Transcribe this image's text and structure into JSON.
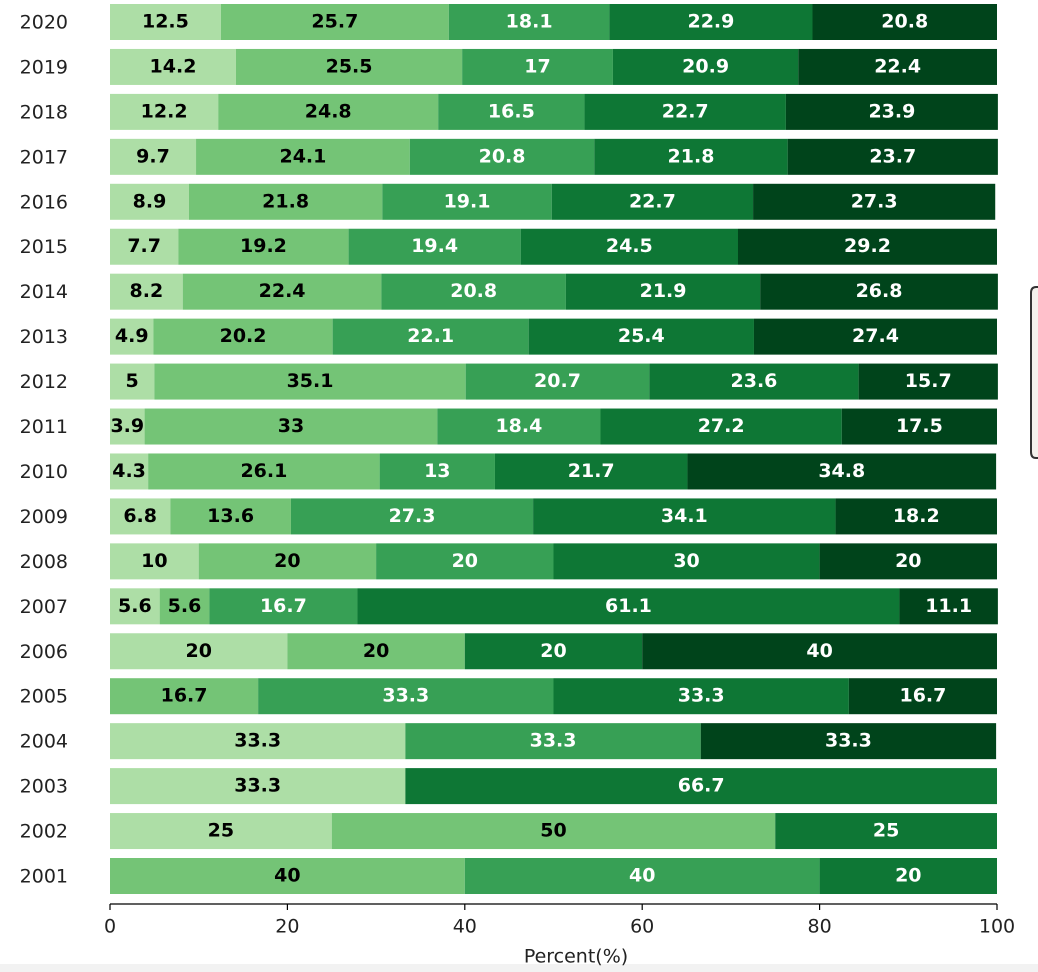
{
  "chart_data": {
    "type": "bar",
    "orientation": "horizontal",
    "stacked": true,
    "xlabel": "Percent(%)",
    "categories": [
      "2020",
      "2019",
      "2018",
      "2017",
      "2016",
      "2015",
      "2014",
      "2013",
      "2012",
      "2011",
      "2010",
      "2009",
      "2008",
      "2007",
      "2006",
      "2005",
      "2004",
      "2003",
      "2002",
      "2001"
    ],
    "series": [
      {
        "color": "#addea6",
        "values": [
          12.5,
          14.2,
          12.2,
          9.7,
          8.9,
          7.7,
          8.2,
          4.9,
          5,
          3.9,
          4.3,
          6.8,
          10,
          5.6,
          20,
          null,
          33.3,
          33.3,
          25,
          null
        ]
      },
      {
        "color": "#74c476",
        "values": [
          25.7,
          25.5,
          24.8,
          24.1,
          21.8,
          19.2,
          22.4,
          20.2,
          35.1,
          33,
          26.1,
          13.6,
          20,
          5.6,
          20,
          16.7,
          null,
          null,
          50,
          40
        ]
      },
      {
        "color": "#37a055",
        "values": [
          18.1,
          17,
          16.5,
          20.8,
          19.1,
          19.4,
          20.8,
          22.1,
          20.7,
          18.4,
          13,
          27.3,
          20,
          16.7,
          null,
          33.3,
          33.3,
          null,
          null,
          40
        ]
      },
      {
        "color": "#0e7735",
        "values": [
          22.9,
          20.9,
          22.7,
          21.8,
          22.7,
          24.5,
          21.9,
          25.4,
          23.6,
          27.2,
          21.7,
          34.1,
          30,
          61.1,
          20,
          33.3,
          null,
          66.7,
          25,
          20
        ]
      },
      {
        "color": "#00441b",
        "values": [
          20.8,
          22.4,
          23.9,
          23.7,
          27.3,
          29.2,
          26.8,
          27.4,
          15.7,
          17.5,
          34.8,
          18.2,
          20,
          11.1,
          40,
          16.7,
          33.3,
          null,
          null,
          null
        ]
      }
    ],
    "xlim": [
      0,
      100
    ],
    "xticks": [
      0,
      20,
      40,
      60,
      80,
      100
    ]
  }
}
